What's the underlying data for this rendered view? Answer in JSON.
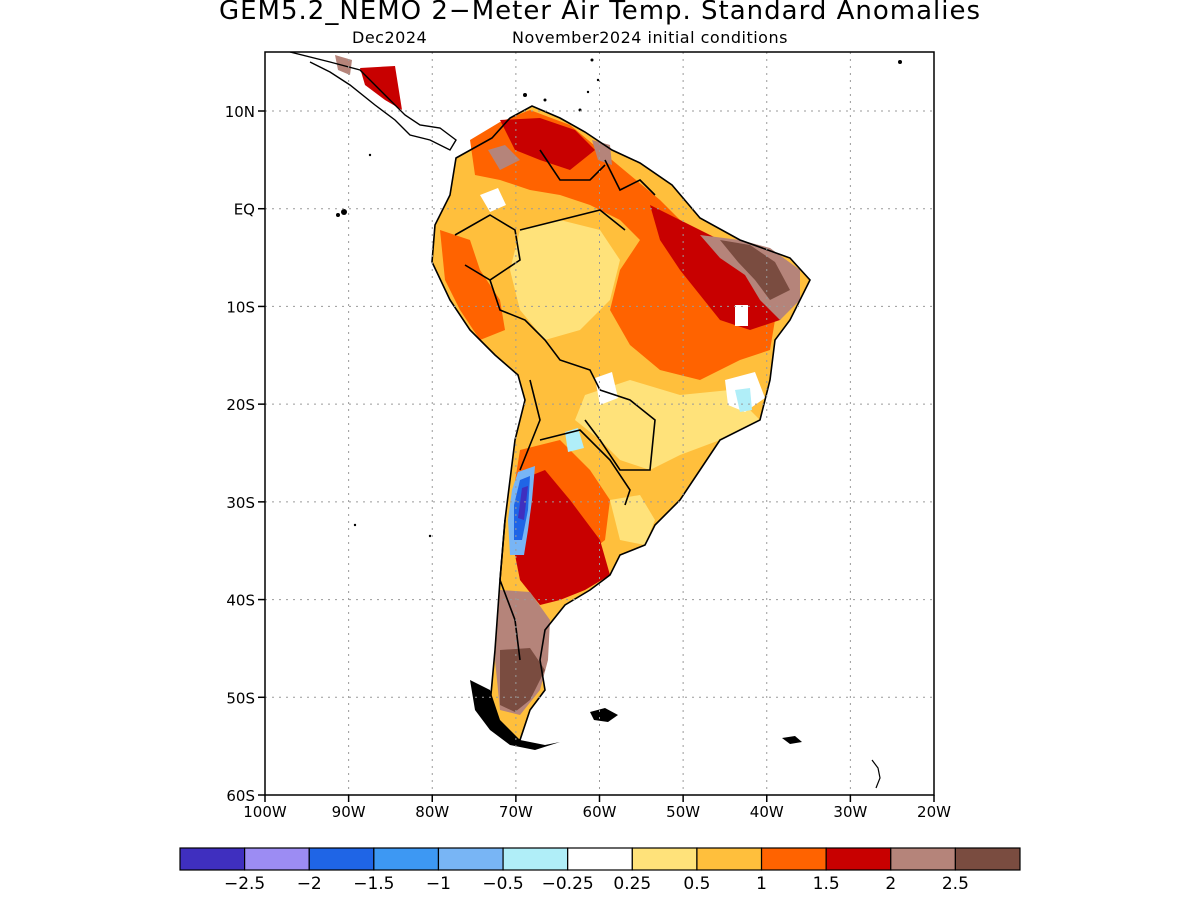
{
  "title": "GEM5.2_NEMO 2−Meter Air Temp. Standard Anomalies",
  "subtitle_left": "Dec2024",
  "subtitle_right": "November2024 initial conditions",
  "map": {
    "region": "South America",
    "lon_range": [
      -100,
      -20
    ],
    "lat_range": [
      -60,
      16
    ],
    "lat_ticks": [
      {
        "value": 10,
        "label": "10N"
      },
      {
        "value": 0,
        "label": "EQ"
      },
      {
        "value": -10,
        "label": "10S"
      },
      {
        "value": -20,
        "label": "20S"
      },
      {
        "value": -30,
        "label": "30S"
      },
      {
        "value": -40,
        "label": "40S"
      },
      {
        "value": -50,
        "label": "50S"
      },
      {
        "value": -60,
        "label": "60S"
      }
    ],
    "lon_ticks": [
      {
        "value": -100,
        "label": "100W"
      },
      {
        "value": -90,
        "label": "90W"
      },
      {
        "value": -80,
        "label": "80W"
      },
      {
        "value": -70,
        "label": "70W"
      },
      {
        "value": -60,
        "label": "60W"
      },
      {
        "value": -50,
        "label": "50W"
      },
      {
        "value": -40,
        "label": "40W"
      },
      {
        "value": -30,
        "label": "30W"
      },
      {
        "value": -20,
        "label": "20W"
      }
    ],
    "grid": true
  },
  "colorbar": {
    "colors": [
      "#3f2fbf",
      "#9c8cf3",
      "#1f65e6",
      "#3d98f3",
      "#78b5f5",
      "#b0eef8",
      "#ffffff",
      "#ffe27a",
      "#ffbf3c",
      "#ff6300",
      "#c80000",
      "#b5847a",
      "#7a4c40"
    ],
    "labels": [
      "−2.5",
      "−2",
      "−1.5",
      "−1",
      "−0.5",
      "−0.25",
      "0.25",
      "0.5",
      "1",
      "1.5",
      "2",
      "2.5"
    ]
  }
}
